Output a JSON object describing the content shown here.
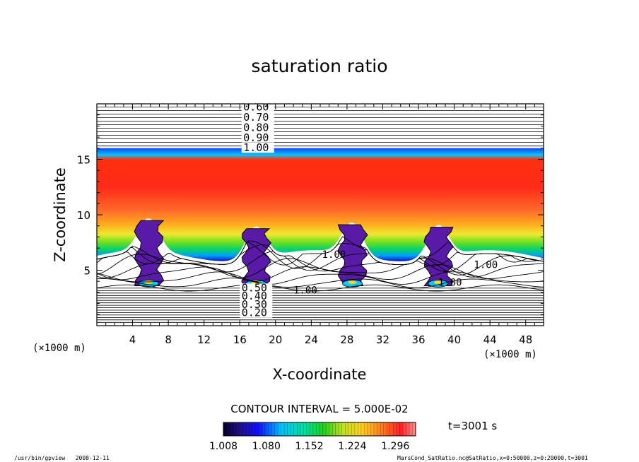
{
  "chart_data": {
    "type": "heatmap",
    "title": "saturation ratio",
    "xlabel": "X-coordinate",
    "ylabel": "Z-coordinate",
    "x_unit": "(×1000 m)",
    "y_unit": "(×1000 m)",
    "xlim": [
      0,
      50
    ],
    "ylim": [
      0,
      20
    ],
    "x_ticks": [
      4,
      8,
      12,
      16,
      20,
      24,
      28,
      32,
      36,
      40,
      44,
      48
    ],
    "y_ticks": [
      5,
      10,
      15
    ],
    "contour_interval": "CONTOUR INTERVAL = 5.000E-02",
    "time_label": "t=3001 s",
    "colorbar": {
      "min": 1.008,
      "max": 1.33,
      "tick_labels": [
        "1.008",
        "1.080",
        "1.152",
        "1.224",
        "1.296"
      ]
    },
    "contour_labels_top": [
      "0.60",
      "0.70",
      "0.80",
      "0.90",
      "1.00"
    ],
    "contour_labels_bottom": [
      "0.50",
      "0.40",
      "0.30",
      "0.20"
    ],
    "contour_labels_other": [
      "1.00",
      "1.00",
      "1.00",
      "1.00"
    ],
    "cloud_columns_x": [
      5.8,
      17.8,
      28.6,
      38.2
    ],
    "footer_left": "/usr/bin/gpview   2008-12-11",
    "footer_right": "MarsCond_SatRatio.nc@SatRatio,x=0:50000,z=0:20000,t=3001"
  },
  "colors": {
    "background": "#ffffff",
    "low": "#3a0a7a",
    "high": "#ff2020",
    "contour": "#000000"
  }
}
